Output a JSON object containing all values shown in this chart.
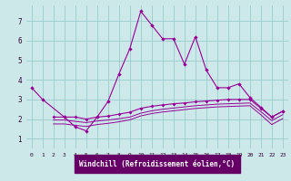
{
  "bg_color": "#cce8e8",
  "grid_color": "#99cccc",
  "line_color": "#990099",
  "xlabel": "Windchill (Refroidissement éolien,°C)",
  "xlabel_bg": "#660066",
  "xlabel_fg": "#ffffff",
  "xlim": [
    -0.5,
    23.5
  ],
  "ylim": [
    0.5,
    7.8
  ],
  "yticks": [
    1,
    2,
    3,
    4,
    5,
    6,
    7
  ],
  "xticks": [
    0,
    1,
    2,
    3,
    4,
    5,
    6,
    7,
    8,
    9,
    10,
    11,
    12,
    13,
    14,
    15,
    16,
    17,
    18,
    19,
    20,
    21,
    22,
    23
  ],
  "series1_x": [
    0,
    1,
    3,
    4,
    5,
    6,
    7,
    8,
    9,
    10,
    11,
    12,
    13,
    14,
    15,
    16,
    17,
    18,
    19,
    20,
    21,
    22,
    23
  ],
  "series1_y": [
    3.6,
    3.0,
    2.1,
    1.6,
    1.4,
    2.1,
    2.9,
    4.3,
    5.6,
    7.5,
    6.8,
    6.1,
    6.1,
    4.8,
    6.2,
    4.5,
    3.6,
    3.6,
    3.8,
    3.1,
    2.6,
    2.1,
    2.4
  ],
  "series2_x": [
    2,
    3,
    4,
    5,
    6,
    7,
    8,
    9,
    10,
    11,
    12,
    13,
    14,
    15,
    16,
    17,
    18,
    19,
    20,
    21,
    22,
    23
  ],
  "series2_y": [
    2.1,
    2.1,
    2.1,
    2.0,
    2.1,
    2.15,
    2.25,
    2.35,
    2.55,
    2.65,
    2.72,
    2.78,
    2.82,
    2.88,
    2.92,
    2.96,
    3.0,
    3.0,
    3.0,
    2.55,
    2.1,
    2.4
  ],
  "series3_x": [
    2,
    3,
    4,
    5,
    6,
    7,
    8,
    9,
    10,
    11,
    12,
    13,
    14,
    15,
    16,
    17,
    18,
    19,
    20,
    21,
    22,
    23
  ],
  "series3_y": [
    1.95,
    1.95,
    1.88,
    1.82,
    1.9,
    1.95,
    2.02,
    2.1,
    2.3,
    2.42,
    2.5,
    2.56,
    2.62,
    2.68,
    2.72,
    2.76,
    2.78,
    2.8,
    2.82,
    2.38,
    1.92,
    2.22
  ],
  "series4_x": [
    2,
    3,
    4,
    5,
    6,
    7,
    8,
    9,
    10,
    11,
    12,
    13,
    14,
    15,
    16,
    17,
    18,
    19,
    20,
    21,
    22,
    23
  ],
  "series4_y": [
    1.75,
    1.75,
    1.68,
    1.62,
    1.72,
    1.78,
    1.86,
    1.96,
    2.16,
    2.28,
    2.36,
    2.42,
    2.48,
    2.54,
    2.58,
    2.62,
    2.64,
    2.66,
    2.68,
    2.22,
    1.72,
    2.02
  ]
}
